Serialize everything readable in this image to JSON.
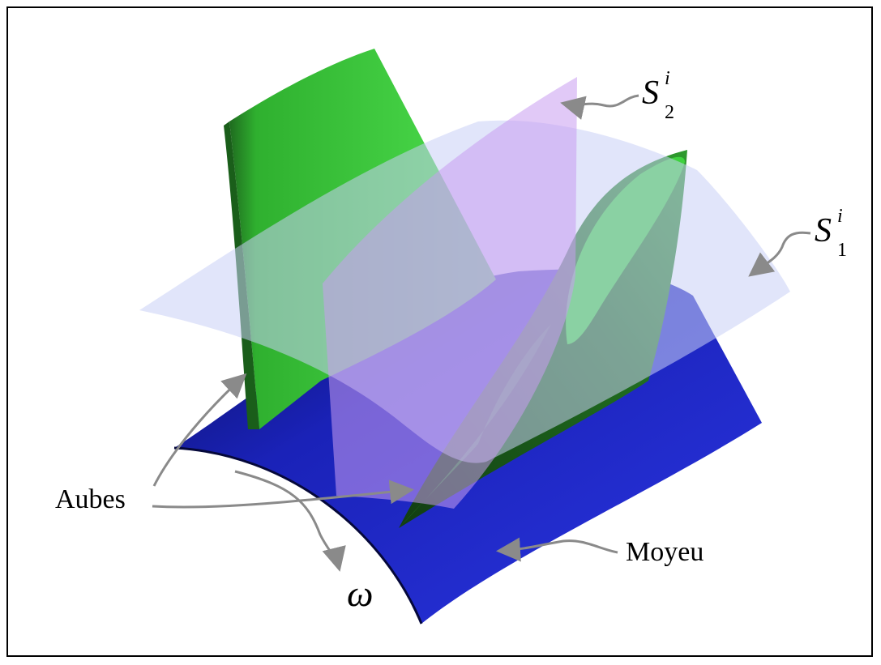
{
  "labels": {
    "aubes": "Aubes",
    "moyeu": "Moyeu",
    "omega": "ω",
    "s2": {
      "base": "S",
      "sup": "i",
      "sub": "2"
    },
    "s1": {
      "base": "S",
      "sup": "i",
      "sub": "1"
    }
  },
  "colors": {
    "hub": "#1e28c8",
    "blade": "#3cc83c",
    "blade_dark": "#1f6b1f",
    "s2_surface": "#c89cf0",
    "s1_surface": "#c8d0f5",
    "arrow": "#8a8a8a"
  }
}
